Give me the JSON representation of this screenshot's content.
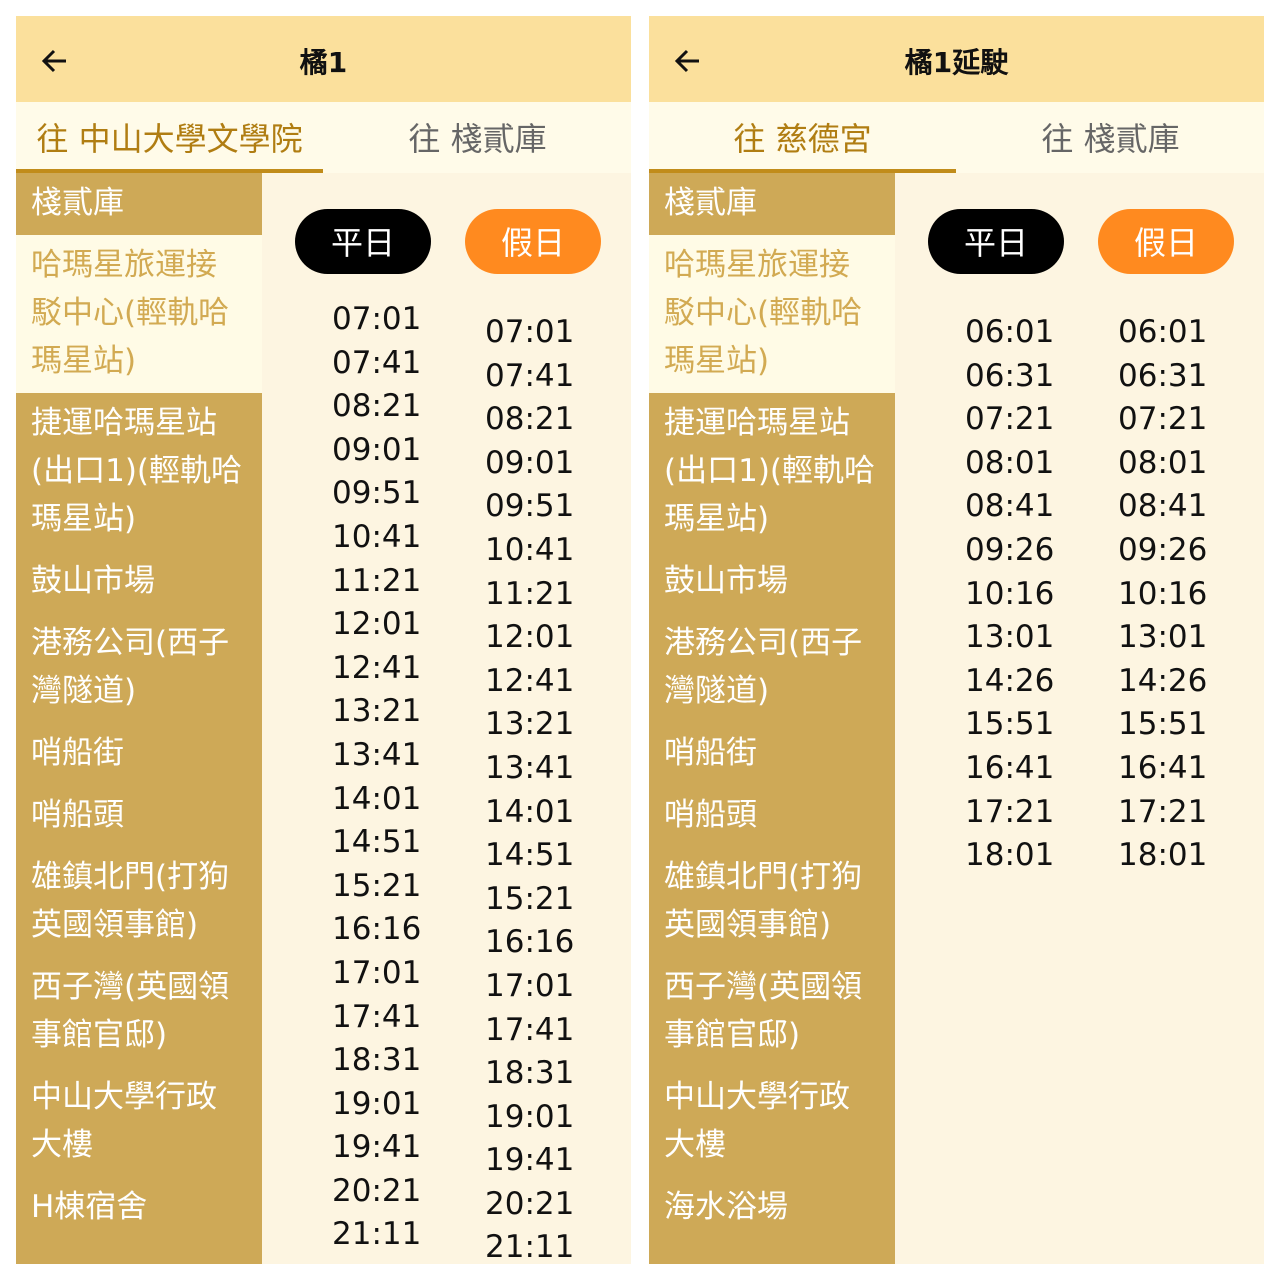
{
  "panels": [
    {
      "title": "橘1",
      "tabs": [
        "往 中山大學文學院",
        "往 棧貳庫"
      ],
      "stops": [
        "棧貳庫",
        "哈瑪星旅運接駁中心(輕軌哈瑪星站)",
        "捷運哈瑪星站(出口1)(輕軌哈瑪星站)",
        "鼓山市場",
        "港務公司(西子灣隧道)",
        "哨船街",
        "哨船頭",
        "雄鎮北門(打狗英國領事館)",
        "西子灣(英國領事館官邸)",
        "中山大學行政大樓",
        "H棟宿舍"
      ],
      "buttons": [
        "平日",
        "假日"
      ],
      "weekday": [
        "07:01",
        "07:41",
        "08:21",
        "09:01",
        "09:51",
        "10:41",
        "11:21",
        "12:01",
        "12:41",
        "13:21",
        "13:41",
        "14:01",
        "14:51",
        "15:21",
        "16:16",
        "17:01",
        "17:41",
        "18:31",
        "19:01",
        "19:41",
        "20:21",
        "21:11"
      ],
      "holiday": [
        "07:01",
        "07:41",
        "08:21",
        "09:01",
        "09:51",
        "10:41",
        "11:21",
        "12:01",
        "12:41",
        "13:21",
        "13:41",
        "14:01",
        "14:51",
        "15:21",
        "16:16",
        "17:01",
        "17:41",
        "18:31",
        "19:01",
        "19:41",
        "20:21",
        "21:11"
      ]
    },
    {
      "title": "橘1延駛",
      "tabs": [
        "往 慈德宮",
        "往 棧貳庫"
      ],
      "stops": [
        "棧貳庫",
        "哈瑪星旅運接駁中心(輕軌哈瑪星站)",
        "捷運哈瑪星站(出口1)(輕軌哈瑪星站)",
        "鼓山市場",
        "港務公司(西子灣隧道)",
        "哨船街",
        "哨船頭",
        "雄鎮北門(打狗英國領事館)",
        "西子灣(英國領事館官邸)",
        "中山大學行政大樓",
        "海水浴場"
      ],
      "buttons": [
        "平日",
        "假日"
      ],
      "weekday": [
        "06:01",
        "06:31",
        "07:21",
        "08:01",
        "08:41",
        "09:26",
        "10:16",
        "13:01",
        "14:26",
        "15:51",
        "16:41",
        "17:21",
        "18:01"
      ],
      "holiday": [
        "06:01",
        "06:31",
        "07:21",
        "08:01",
        "08:41",
        "09:26",
        "10:16",
        "13:01",
        "14:26",
        "15:51",
        "16:41",
        "17:21",
        "18:01"
      ]
    }
  ]
}
